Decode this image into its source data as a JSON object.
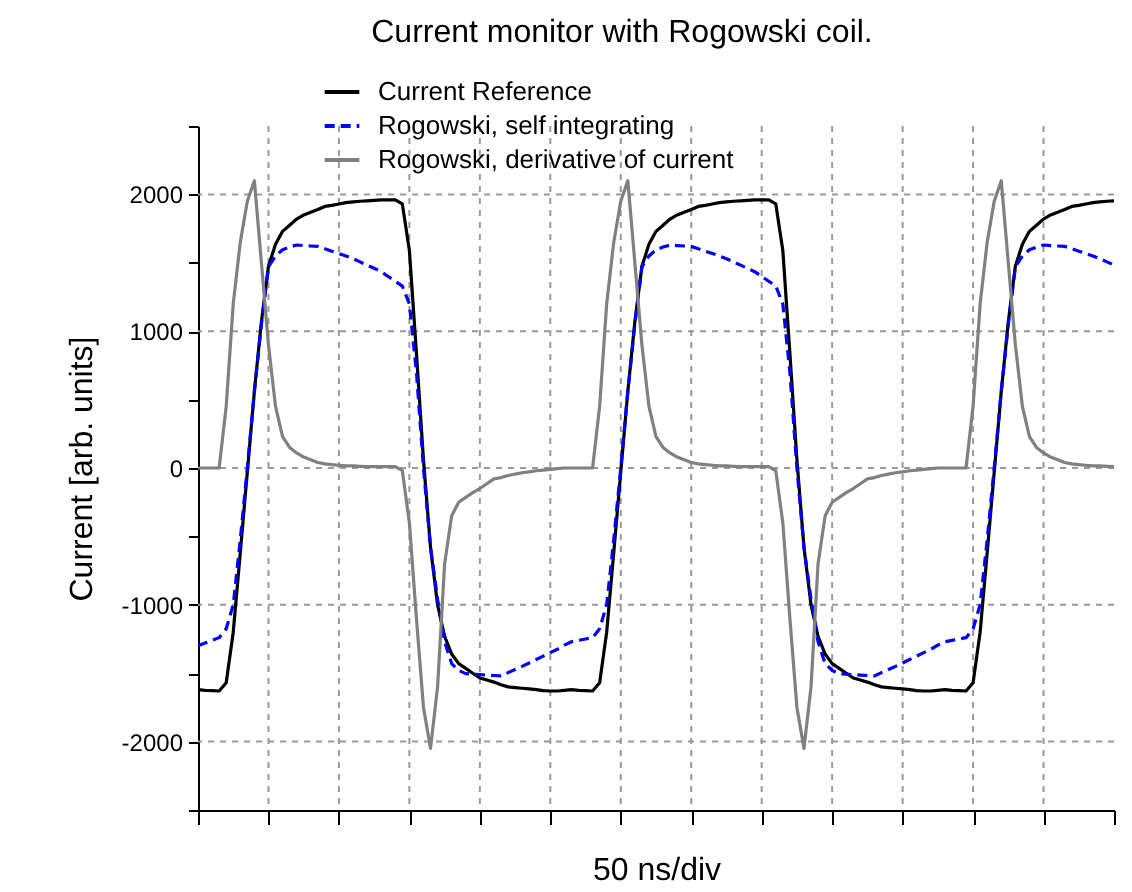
{
  "chart_data": {
    "type": "line",
    "title": "Current monitor with Rogowski coil.",
    "xlabel": "50 ns/div",
    "ylabel": "Current [arb. units]",
    "categories": [
      null,
      null,
      null,
      null,
      null,
      null,
      null,
      null,
      null,
      null,
      null,
      null,
      null,
      null,
      null,
      null,
      null,
      null,
      null,
      null,
      null,
      null,
      null,
      null,
      null,
      null,
      null,
      null,
      null,
      null,
      null,
      null,
      null,
      null,
      null,
      null,
      null,
      null,
      null,
      null,
      null,
      null,
      null,
      null,
      null,
      null,
      null,
      null,
      null,
      null,
      null,
      null,
      null,
      null,
      null,
      null,
      null,
      null,
      null,
      null,
      null,
      null,
      null,
      null,
      null,
      null,
      null,
      null,
      null,
      null,
      null,
      null,
      null,
      null,
      null,
      null,
      null,
      null,
      null,
      null,
      null,
      null,
      null,
      null,
      null,
      null,
      null,
      null,
      null,
      null,
      null,
      null,
      null,
      null,
      null,
      null,
      null,
      null,
      null,
      null,
      null,
      null,
      null,
      null,
      null,
      null,
      null,
      null,
      null,
      null,
      null,
      null,
      null,
      null,
      null,
      null,
      null,
      null,
      null,
      null,
      null,
      null,
      null,
      null,
      null,
      null,
      null,
      null,
      null,
      null,
      null
    ],
    "ylim": [
      -2500,
      2500
    ],
    "yticks": [
      {
        "value": -2500,
        "label": null
      },
      -2000,
      {
        "value": -1500,
        "label": null
      },
      -1000,
      {
        "value": -500,
        "label": null
      },
      0,
      {
        "value": 500,
        "label": null
      },
      1000,
      {
        "value": 1500,
        "label": null
      },
      2000,
      {
        "value": 2500,
        "label": null
      }
    ],
    "tick_labels": "y",
    "grid": true,
    "legend": "top",
    "series": [
      {
        "name": "Current Reference",
        "color": "#000000",
        "line_style": "solid",
        "values": [
          -1620,
          -1625,
          -1628,
          -1630,
          -1570,
          -1200,
          -620,
          -30,
          560,
          1070,
          1475,
          1635,
          1730,
          1775,
          1820,
          1850,
          1870,
          1890,
          1912,
          1920,
          1930,
          1940,
          1946,
          1950,
          1953,
          1956,
          1960,
          1960,
          1960,
          1930,
          1590,
          840,
          60,
          -580,
          -1000,
          -1230,
          -1360,
          -1430,
          -1465,
          -1500,
          -1535,
          -1550,
          -1565,
          -1585,
          -1600,
          -1605,
          -1610,
          -1615,
          -1620,
          -1627,
          -1630,
          -1630,
          -1625,
          -1620,
          -1625,
          -1628,
          -1630,
          -1570,
          -1200,
          -620,
          -30,
          560,
          1070,
          1475,
          1635,
          1730,
          1775,
          1820,
          1850,
          1870,
          1890,
          1912,
          1920,
          1930,
          1940,
          1946,
          1950,
          1953,
          1956,
          1960,
          1960,
          1960,
          1930,
          1590,
          840,
          60,
          -580,
          -1000,
          -1230,
          -1360,
          -1430,
          -1465,
          -1500,
          -1535,
          -1550,
          -1565,
          -1585,
          -1600,
          -1605,
          -1610,
          -1615,
          -1620,
          -1627,
          -1630,
          -1630,
          -1625,
          -1620,
          -1625,
          -1628,
          -1630,
          -1570,
          -1200,
          -620,
          -30,
          560,
          1070,
          1475,
          1635,
          1730,
          1775,
          1820,
          1850,
          1870,
          1890,
          1912,
          1920,
          1930,
          1940,
          1946,
          1950,
          1953
        ]
      },
      {
        "name": "Rogowski, self integrating",
        "color": "#0000ff",
        "line_style": "dashed",
        "values": [
          -1300,
          -1280,
          -1260,
          -1240,
          -1175,
          -1000,
          -525,
          0,
          560,
          1050,
          1470,
          1550,
          1595,
          1615,
          1630,
          1626,
          1623,
          1620,
          1603,
          1585,
          1568,
          1550,
          1530,
          1507,
          1483,
          1460,
          1435,
          1400,
          1365,
          1330,
          1200,
          700,
          0,
          -580,
          -960,
          -1270,
          -1430,
          -1480,
          -1503,
          -1507,
          -1511,
          -1514,
          -1517,
          -1520,
          -1496,
          -1473,
          -1450,
          -1425,
          -1400,
          -1375,
          -1350,
          -1325,
          -1295,
          -1270,
          -1260,
          -1250,
          -1240,
          -1175,
          -1000,
          -525,
          0,
          560,
          1050,
          1470,
          1550,
          1595,
          1615,
          1630,
          1626,
          1623,
          1620,
          1603,
          1585,
          1568,
          1550,
          1530,
          1507,
          1483,
          1460,
          1435,
          1400,
          1365,
          1330,
          1200,
          700,
          0,
          -580,
          -960,
          -1270,
          -1430,
          -1480,
          -1503,
          -1507,
          -1511,
          -1514,
          -1517,
          -1520,
          -1496,
          -1473,
          -1450,
          -1425,
          -1400,
          -1375,
          -1350,
          -1325,
          -1295,
          -1270,
          -1260,
          -1250,
          -1240,
          -1175,
          -1000,
          -525,
          0,
          560,
          1050,
          1470,
          1550,
          1595,
          1615,
          1630,
          1626,
          1623,
          1620,
          1603,
          1585,
          1568,
          1550,
          1530,
          1507,
          1483
        ]
      },
      {
        "name": "Rogowski, derivative of current",
        "color": "#808080",
        "line_style": "solid",
        "values": [
          0,
          0,
          0,
          0,
          450,
          1200,
          1650,
          1950,
          2100,
          1500,
          900,
          450,
          230,
          150,
          110,
          80,
          60,
          40,
          30,
          25,
          20,
          15,
          15,
          12,
          10,
          10,
          10,
          10,
          10,
          -20,
          -400,
          -1100,
          -1750,
          -2050,
          -1600,
          -700,
          -350,
          -250,
          -215,
          -180,
          -150,
          -115,
          -80,
          -70,
          -55,
          -45,
          -35,
          -28,
          -20,
          -15,
          -10,
          -5,
          0,
          0,
          0,
          0,
          0,
          450,
          1200,
          1650,
          1950,
          2100,
          1500,
          900,
          450,
          230,
          150,
          110,
          80,
          60,
          40,
          30,
          25,
          20,
          15,
          15,
          12,
          10,
          10,
          10,
          10,
          10,
          -20,
          -400,
          -1100,
          -1750,
          -2050,
          -1600,
          -700,
          -350,
          -250,
          -215,
          -180,
          -150,
          -115,
          -80,
          -70,
          -55,
          -45,
          -35,
          -28,
          -20,
          -15,
          -10,
          -5,
          0,
          0,
          0,
          0,
          0,
          450,
          1200,
          1650,
          1950,
          2100,
          1500,
          900,
          450,
          230,
          150,
          110,
          80,
          60,
          40,
          30,
          25,
          20,
          15,
          15,
          12,
          10
        ]
      }
    ]
  }
}
